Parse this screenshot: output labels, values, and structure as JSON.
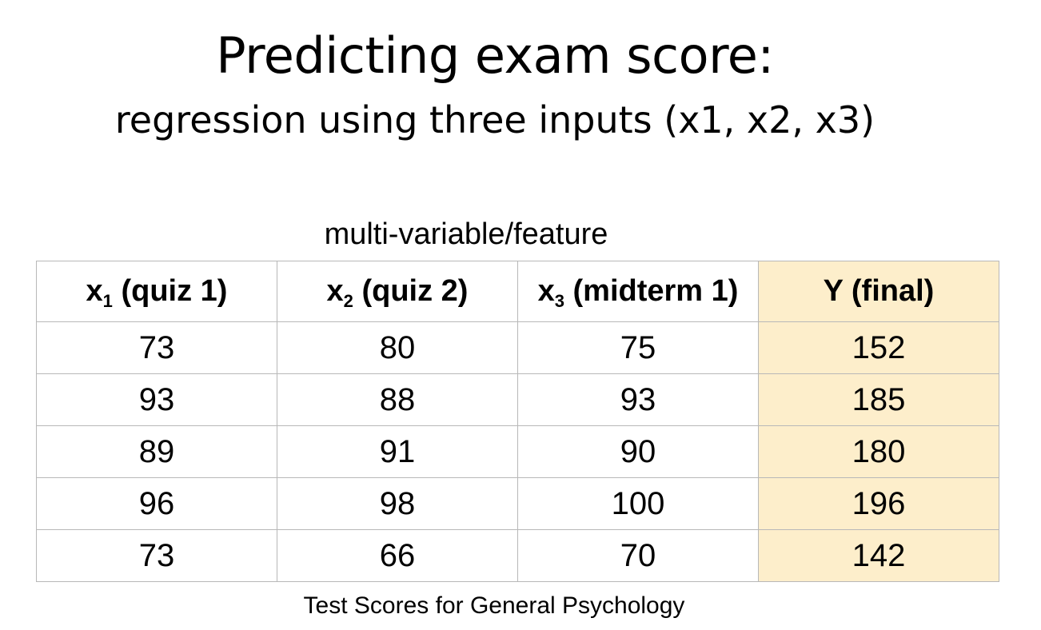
{
  "slide": {
    "title": "Predicting exam score:",
    "subtitle": "regression using three inputs (x1, x2, x3)",
    "table_caption": "multi-variable/feature",
    "footer_caption": "Test Scores for General Psychology",
    "highlight_color": "#fdeecb"
  },
  "table": {
    "headers": [
      {
        "var": "x",
        "sub": "1",
        "label": " (quiz 1)"
      },
      {
        "var": "x",
        "sub": "2",
        "label": " (quiz 2)"
      },
      {
        "var": "x",
        "sub": "3",
        "label": " (midterm 1)"
      },
      {
        "var": "Y (final)",
        "sub": "",
        "label": ""
      }
    ],
    "rows": [
      [
        "73",
        "80",
        "75",
        "152"
      ],
      [
        "93",
        "88",
        "93",
        "185"
      ],
      [
        "89",
        "91",
        "90",
        "180"
      ],
      [
        "96",
        "98",
        "100",
        "196"
      ],
      [
        "73",
        "66",
        "70",
        "142"
      ]
    ]
  }
}
